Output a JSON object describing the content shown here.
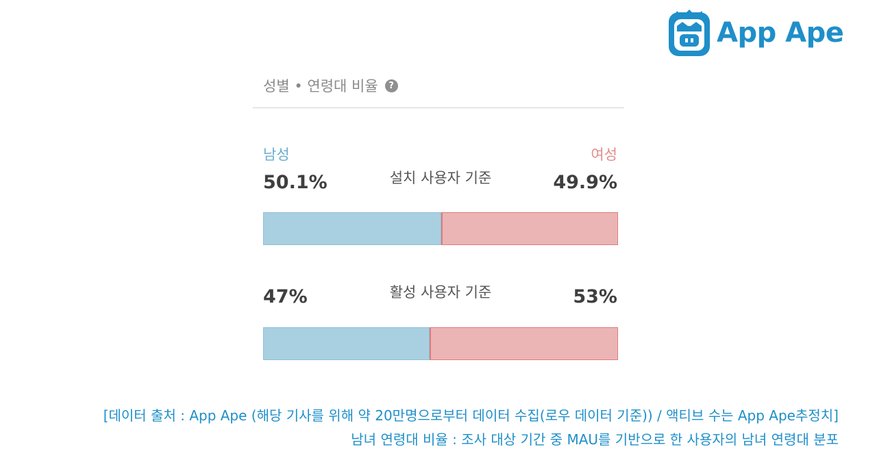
{
  "logo": {
    "text": "App Ape",
    "icon": "ape-face-icon",
    "color": "#1f8fc9"
  },
  "panel": {
    "title": "성별 • 연령대 비율",
    "help_icon": "question-circle-icon",
    "male_label": "남성",
    "female_label": "여성"
  },
  "chart_data": {
    "type": "bar",
    "stacked": true,
    "orientation": "horizontal",
    "categories": [
      "설치 사용자 기준",
      "활성 사용자 기준"
    ],
    "series": [
      {
        "name": "남성",
        "values": [
          50.1,
          47
        ],
        "labels": [
          "50.1%",
          "47%"
        ],
        "color": "#a9d0e0"
      },
      {
        "name": "여성",
        "values": [
          49.9,
          53
        ],
        "labels": [
          "49.9%",
          "53%"
        ],
        "color": "#ebb5b5"
      }
    ]
  },
  "captions": {
    "line1": "[데이터 출처 : App Ape (해당 기사를 위해 약 20만명으로부터 데이터 수집(로우 데이터 기준)) / 액티브 수는 App Ape추정치]",
    "line2": "남녀 연령대 비율 : 조사 대상 기간 중 MAU를 기반으로 한 사용자의 남녀 연령대 분포"
  }
}
